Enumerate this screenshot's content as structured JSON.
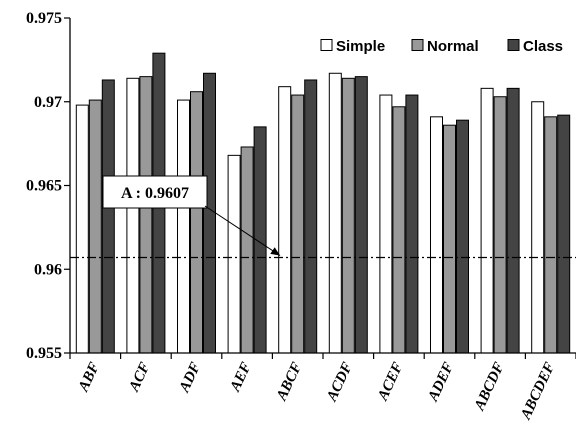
{
  "chart_data": {
    "type": "bar",
    "categories": [
      "ABF",
      "ACF",
      "ADF",
      "AEF",
      "ABCF",
      "ACDF",
      "ACEF",
      "ADEF",
      "ABCDF",
      "ABCDEF"
    ],
    "series": [
      {
        "name": "Simple",
        "color": "#ffffff",
        "values": [
          0.9698,
          0.9714,
          0.9701,
          0.9668,
          0.9709,
          0.9717,
          0.9704,
          0.9691,
          0.9708,
          0.97
        ]
      },
      {
        "name": "Normal",
        "color": "#999999",
        "values": [
          0.9701,
          0.9715,
          0.9706,
          0.9673,
          0.9704,
          0.9714,
          0.9697,
          0.9686,
          0.9703,
          0.9691
        ]
      },
      {
        "name": "Class",
        "color": "#444444",
        "values": [
          0.9713,
          0.9729,
          0.9717,
          0.9685,
          0.9713,
          0.9715,
          0.9704,
          0.9689,
          0.9708,
          0.9692
        ]
      }
    ],
    "ylim": [
      0.955,
      0.975
    ],
    "yticks": [
      "0.955",
      "0.96",
      "0.965",
      "0.97",
      "0.975"
    ],
    "reference_line": {
      "value": 0.9607,
      "style": "dash-dot",
      "label": "A : 0.9607"
    },
    "legend_position": "top-right",
    "grid": false,
    "title": "",
    "xlabel": "",
    "ylabel": ""
  }
}
